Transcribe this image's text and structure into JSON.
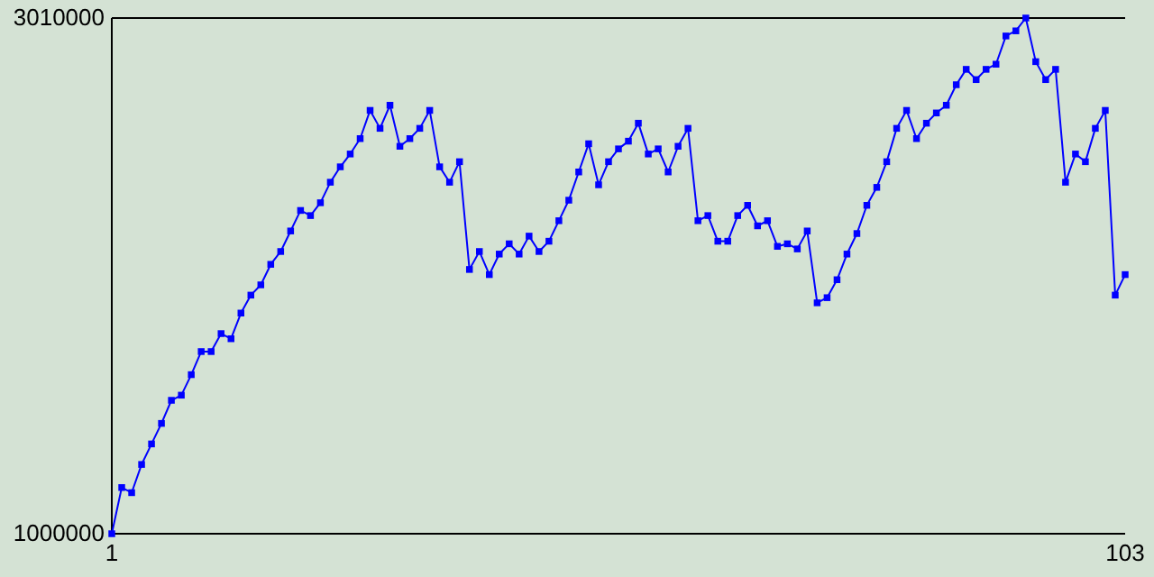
{
  "chart_data": {
    "type": "line",
    "marker": "square",
    "line_style": "solid",
    "grid": false,
    "x": [
      1,
      2,
      3,
      4,
      5,
      6,
      7,
      8,
      9,
      10,
      11,
      12,
      13,
      14,
      15,
      16,
      17,
      18,
      19,
      20,
      21,
      22,
      23,
      24,
      25,
      26,
      27,
      28,
      29,
      30,
      31,
      32,
      33,
      34,
      35,
      36,
      37,
      38,
      39,
      40,
      41,
      42,
      43,
      44,
      45,
      46,
      47,
      48,
      49,
      50,
      51,
      52,
      53,
      54,
      55,
      56,
      57,
      58,
      59,
      60,
      61,
      62,
      63,
      64,
      65,
      66,
      67,
      68,
      69,
      70,
      71,
      72,
      73,
      74,
      75,
      76,
      77,
      78,
      79,
      80,
      81,
      82,
      83,
      84,
      85,
      86,
      87,
      88,
      89,
      90,
      91,
      92,
      93,
      94,
      95,
      96,
      97,
      98,
      99,
      100,
      101,
      102,
      103
    ],
    "series": [
      {
        "color": "#0000ff",
        "values": [
          1000000,
          1180000,
          1160000,
          1270000,
          1350000,
          1430000,
          1520000,
          1540000,
          1620000,
          1710000,
          1710000,
          1780000,
          1760000,
          1860000,
          1930000,
          1970000,
          2050000,
          2100000,
          2180000,
          2260000,
          2240000,
          2290000,
          2370000,
          2430000,
          2480000,
          2540000,
          2650000,
          2580000,
          2670000,
          2510000,
          2540000,
          2580000,
          2650000,
          2430000,
          2370000,
          2450000,
          2030000,
          2100000,
          2010000,
          2090000,
          2130000,
          2090000,
          2160000,
          2100000,
          2140000,
          2220000,
          2300000,
          2410000,
          2520000,
          2360000,
          2450000,
          2500000,
          2530000,
          2600000,
          2480000,
          2500000,
          2410000,
          2510000,
          2580000,
          2220000,
          2240000,
          2140000,
          2140000,
          2240000,
          2280000,
          2200000,
          2220000,
          2120000,
          2130000,
          2110000,
          2180000,
          1900000,
          1920000,
          1990000,
          2090000,
          2170000,
          2280000,
          2350000,
          2450000,
          2580000,
          2650000,
          2540000,
          2600000,
          2640000,
          2670000,
          2750000,
          2810000,
          2770000,
          2810000,
          2830000,
          2940000,
          2960000,
          3010000,
          2840000,
          2770000,
          2810000,
          2370000,
          2480000,
          2450000,
          2580000,
          2650000,
          1930000,
          2010000
        ]
      }
    ],
    "xlim": [
      1,
      103
    ],
    "xticks": [
      1,
      103
    ],
    "ylim": [
      1000000,
      3010000
    ],
    "yticks": [
      1000000,
      3010000
    ]
  }
}
